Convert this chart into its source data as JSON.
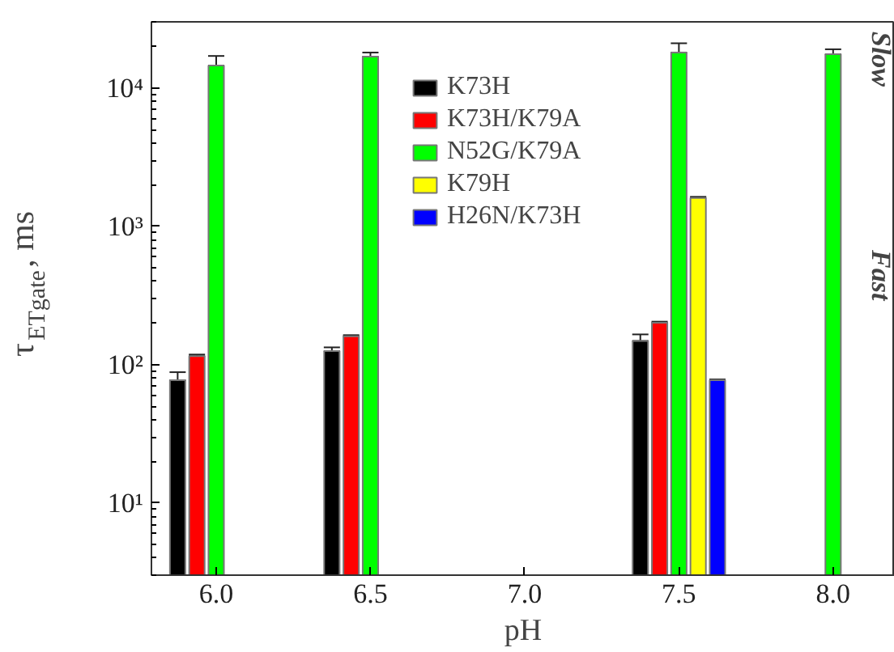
{
  "chart_data": {
    "type": "bar",
    "xlabel": "pH",
    "ylabel": "τ$_{ETgate}$, ms",
    "log": "y",
    "xlim": [
      5.79,
      8.2
    ],
    "xticks": [
      {
        "value": 6,
        "label": "6.0"
      },
      6.5,
      {
        "value": 7,
        "label": "7.0"
      },
      7.5,
      {
        "value": 8,
        "label": "8.0"
      }
    ],
    "ylim": [
      3,
      30000
    ],
    "yticks": [
      {
        "value": 10,
        "label": "10¹"
      },
      {
        "value": 100,
        "label": "10²"
      },
      {
        "value": 1000,
        "label": "10³"
      },
      {
        "value": 10000,
        "label": "10⁴"
      }
    ],
    "grid": false,
    "legend": "top",
    "annotations": [
      "Slow",
      "Fast"
    ],
    "series": [
      {
        "name": "K73H",
        "color": "#000000",
        "x": [
          5.875,
          6.375,
          7.375
        ],
        "values": [
          77,
          125,
          148
        ],
        "errors": [
          [
            77,
            88
          ],
          [
            125,
            133
          ],
          [
            148,
            165
          ]
        ]
      },
      {
        "name": "K73H/K79A",
        "color": "#ff0000",
        "x": [
          5.9375,
          6.4375,
          7.4375
        ],
        "values": [
          115,
          160,
          200
        ],
        "errors": [
          [
            115,
            118
          ],
          [
            160,
            163
          ],
          [
            200,
            204
          ]
        ]
      },
      {
        "name": "N52G/K79A",
        "color": "#00ff00",
        "x": [
          6.0,
          6.5,
          7.5,
          8.0
        ],
        "values": [
          14500,
          16800,
          18000,
          17500
        ],
        "errors": [
          [
            14500,
            17000
          ],
          [
            16800,
            18000
          ],
          [
            18000,
            21000
          ],
          [
            17500,
            19000
          ]
        ]
      },
      {
        "name": "K79H",
        "color": "#ffff00",
        "x": [
          7.5625
        ],
        "values": [
          1600
        ],
        "errors": [
          [
            1600,
            1630
          ]
        ]
      },
      {
        "name": "H26N/K73H",
        "color": "#0000ff",
        "x": [
          7.625
        ],
        "values": [
          77
        ],
        "errors": [
          [
            77,
            78
          ]
        ]
      }
    ]
  }
}
